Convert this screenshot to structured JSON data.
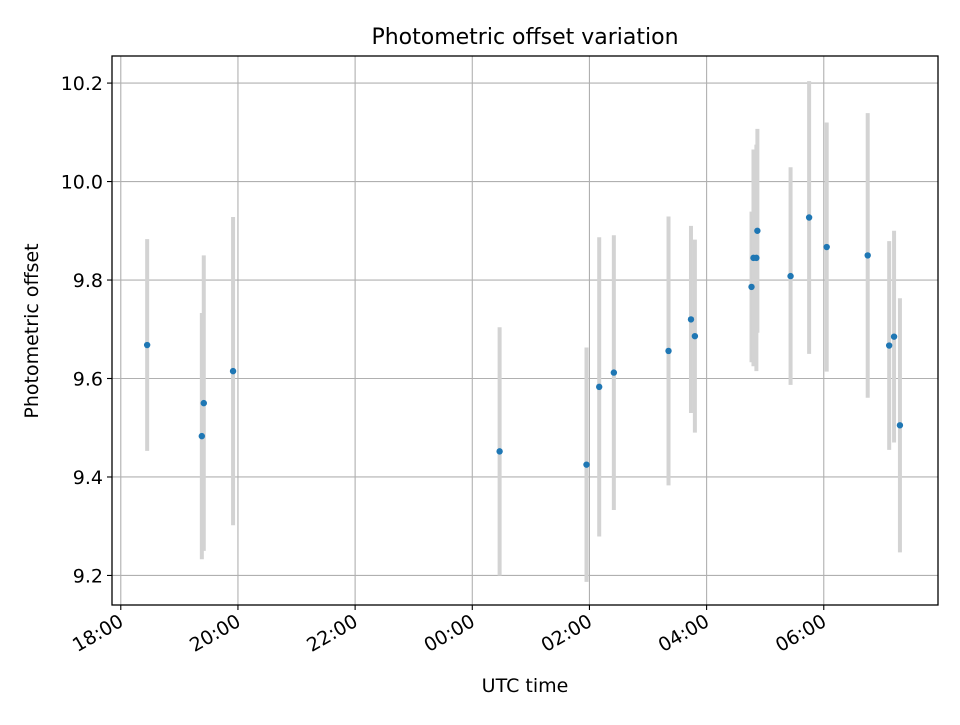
{
  "chart_data": {
    "type": "scatter",
    "title": "Photometric offset variation",
    "xlabel": "UTC time",
    "ylabel": "Photometric offset",
    "x_axis_type": "time",
    "xlim_hours": [
      17.85,
      31.95
    ],
    "ylim": [
      9.14,
      10.255
    ],
    "xticks": [
      {
        "hour": 18,
        "label": "18:00"
      },
      {
        "hour": 20,
        "label": "20:00"
      },
      {
        "hour": 22,
        "label": "22:00"
      },
      {
        "hour": 24,
        "label": "00:00"
      },
      {
        "hour": 26,
        "label": "02:00"
      },
      {
        "hour": 28,
        "label": "04:00"
      },
      {
        "hour": 30,
        "label": "06:00"
      }
    ],
    "yticks": [
      {
        "value": 9.2,
        "label": "9.2"
      },
      {
        "value": 9.4,
        "label": "9.4"
      },
      {
        "value": 9.6,
        "label": "9.6"
      },
      {
        "value": 9.8,
        "label": "9.8"
      },
      {
        "value": 10.0,
        "label": "10.0"
      },
      {
        "value": 10.2,
        "label": "10.2"
      }
    ],
    "grid": true,
    "marker_color": "#1f77b4",
    "errorbar_color": "#d3d3d3",
    "series": [
      {
        "points": [
          {
            "time": "18:27",
            "y": 9.668,
            "err": 0.215
          },
          {
            "time": "19:23",
            "y": 9.483,
            "err": 0.25
          },
          {
            "time": "19:25",
            "y": 9.55,
            "err": 0.3
          },
          {
            "time": "19:55",
            "y": 9.615,
            "err": 0.313
          },
          {
            "time": "00:28",
            "y": 9.452,
            "err": 0.252
          },
          {
            "time": "01:57",
            "y": 9.425,
            "err": 0.238
          },
          {
            "time": "02:10",
            "y": 9.583,
            "err": 0.304
          },
          {
            "time": "02:25",
            "y": 9.612,
            "err": 0.279
          },
          {
            "time": "03:21",
            "y": 9.656,
            "err": 0.273
          },
          {
            "time": "03:44",
            "y": 9.72,
            "err": 0.19
          },
          {
            "time": "03:48",
            "y": 9.686,
            "err": 0.196
          },
          {
            "time": "04:46",
            "y": 9.786,
            "err": 0.153
          },
          {
            "time": "04:48",
            "y": 9.845,
            "err": 0.22
          },
          {
            "time": "04:51",
            "y": 9.845,
            "err": 0.23
          },
          {
            "time": "04:52",
            "y": 9.9,
            "err": 0.207
          },
          {
            "time": "05:26",
            "y": 9.808,
            "err": 0.221
          },
          {
            "time": "05:45",
            "y": 9.927,
            "err": 0.277
          },
          {
            "time": "06:03",
            "y": 9.867,
            "err": 0.253
          },
          {
            "time": "06:45",
            "y": 9.85,
            "err": 0.289
          },
          {
            "time": "07:07",
            "y": 9.667,
            "err": 0.212
          },
          {
            "time": "07:12",
            "y": 9.685,
            "err": 0.215
          },
          {
            "time": "07:18",
            "y": 9.505,
            "err": 0.258
          }
        ]
      }
    ]
  }
}
